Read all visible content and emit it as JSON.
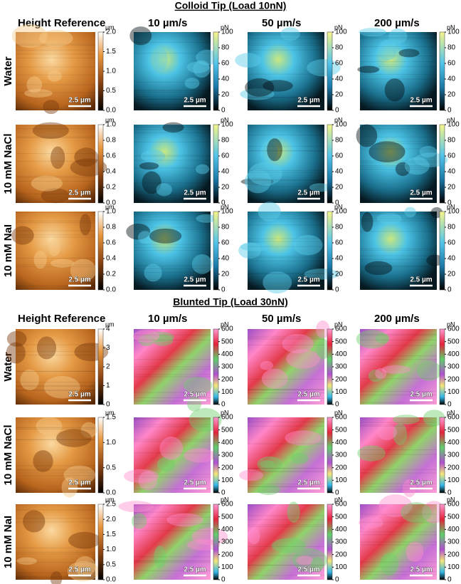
{
  "sections": [
    {
      "title": "Colloid Tip (Load 10nN)",
      "columns": [
        "Height Reference",
        "10 µm/s",
        "50 µm/s",
        "200 µm/s"
      ],
      "rows": [
        {
          "label": "Water",
          "panels": [
            {
              "scale_bar": "2.5 µm",
              "unit": "µm",
              "ticks": [
                "0.0",
                "0.5",
                "1.0",
                "1.5",
                "2.0"
              ]
            },
            {
              "scale_bar": "2.5 µm",
              "unit": "pN",
              "ticks": [
                0,
                20,
                40,
                60,
                80,
                100
              ]
            },
            {
              "scale_bar": "2.5 µm",
              "unit": "pN",
              "ticks": [
                0,
                20,
                40,
                60,
                80,
                100
              ]
            },
            {
              "scale_bar": "2.5 µm",
              "unit": "pN",
              "ticks": [
                0,
                20,
                40,
                60,
                80,
                100
              ]
            }
          ]
        },
        {
          "label": "10 mM NaCl",
          "panels": [
            {
              "scale_bar": "2.5 µm",
              "unit": "µm",
              "ticks": [
                "0.0",
                "0.2",
                "0.4",
                "0.6",
                "0.8",
                "1.0"
              ]
            },
            {
              "scale_bar": "2.5 µm",
              "unit": "pN",
              "ticks": [
                0,
                20,
                40,
                60,
                80,
                100
              ]
            },
            {
              "scale_bar": "2.5 µm",
              "unit": "pN",
              "ticks": [
                0,
                20,
                40,
                60,
                80,
                100
              ]
            },
            {
              "scale_bar": "2.5 µm",
              "unit": "pN",
              "ticks": [
                0,
                20,
                40,
                60,
                80,
                100
              ]
            }
          ]
        },
        {
          "label": "10 mM NaI",
          "panels": [
            {
              "scale_bar": "2.5 µm",
              "unit": "µm",
              "ticks": [
                "0.0",
                "0.2",
                "0.4",
                "0.6",
                "0.8",
                "1.0"
              ]
            },
            {
              "scale_bar": "2.5 µm",
              "unit": "pN",
              "ticks": [
                0,
                20,
                40,
                60,
                80,
                100
              ]
            },
            {
              "scale_bar": "2.5 µm",
              "unit": "pN",
              "ticks": [
                0,
                20,
                40,
                60,
                80,
                100
              ]
            },
            {
              "scale_bar": "2.5 µm",
              "unit": "pN",
              "ticks": [
                0,
                20,
                40,
                60,
                80,
                100
              ]
            }
          ]
        }
      ]
    },
    {
      "title": "Blunted Tip (Load 30nN)",
      "columns": [
        "Height Reference",
        "10 µm/s",
        "50 µm/s",
        "200 µm/s"
      ],
      "rows": [
        {
          "label": "Water",
          "panels": [
            {
              "scale_bar": "2.5 µm",
              "unit": "µm",
              "ticks": [
                "0",
                "1",
                "2",
                "3",
                "4"
              ]
            },
            {
              "scale_bar": "2.5 µm",
              "unit": "pN",
              "ticks": [
                0,
                100,
                200,
                300,
                400,
                500,
                600
              ]
            },
            {
              "scale_bar": "2.5 µm",
              "unit": "pN",
              "ticks": [
                0,
                100,
                200,
                300,
                400,
                500,
                600
              ]
            },
            {
              "scale_bar": "2.5 µm",
              "unit": "pN",
              "ticks": [
                0,
                100,
                200,
                300,
                400,
                500,
                600
              ]
            }
          ]
        },
        {
          "label": "10 mM NaCl",
          "panels": [
            {
              "scale_bar": "2.5 µm",
              "unit": "µm",
              "ticks": [
                "0.0",
                "0.5",
                "1.0",
                "1.5"
              ]
            },
            {
              "scale_bar": "2.5 µm",
              "unit": "pN",
              "ticks": [
                0,
                100,
                200,
                300,
                400,
                500,
                600
              ]
            },
            {
              "scale_bar": "2.5 µm",
              "unit": "pN",
              "ticks": [
                0,
                100,
                200,
                300,
                400,
                500,
                600
              ]
            },
            {
              "scale_bar": "2.5 µm",
              "unit": "pN",
              "ticks": [
                0,
                100,
                200,
                300,
                400,
                500,
                600
              ]
            }
          ]
        },
        {
          "label": "10 mM NaI",
          "panels": [
            {
              "scale_bar": "2.5 µm",
              "unit": "µm",
              "ticks": [
                "0.0",
                "0.5",
                "1.0",
                "1.5",
                "2.0",
                "2.5"
              ]
            },
            {
              "scale_bar": "2.5 µm",
              "unit": "pN",
              "ticks": [
                0,
                100,
                200,
                300,
                400,
                500,
                600
              ]
            },
            {
              "scale_bar": "2.5 µm",
              "unit": "pN",
              "ticks": [
                0,
                100,
                200,
                300,
                400,
                500,
                600
              ]
            },
            {
              "scale_bar": "2.5 µm",
              "unit": "pN",
              "ticks": [
                0,
                100,
                200,
                300,
                400,
                500,
                600
              ]
            }
          ]
        }
      ]
    }
  ]
}
